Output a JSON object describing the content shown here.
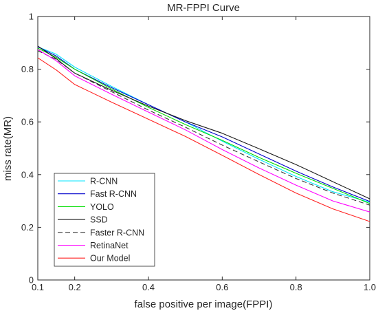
{
  "chart_data": {
    "type": "line",
    "title": "MR-FPPI Curve",
    "xlabel": "false positive per image(FPPI)",
    "ylabel": "miss rate(MR)",
    "xlim": [
      0.1,
      1.0
    ],
    "ylim": [
      0,
      1
    ],
    "xticks": [
      0.1,
      0.2,
      0.4,
      0.6,
      0.8,
      1.0
    ],
    "xtick_labels": [
      "0.1",
      "0.2",
      "0.4",
      "0.6",
      "0.8",
      "1.0"
    ],
    "yticks": [
      0,
      0.2,
      0.4,
      0.6,
      0.8,
      1
    ],
    "ytick_labels": [
      "0",
      "0.2",
      "0.4",
      "0.6",
      "0.8",
      "1"
    ],
    "grid": false,
    "legend_position": "bottom-left",
    "x": [
      0.1,
      0.15,
      0.2,
      0.3,
      0.4,
      0.5,
      0.6,
      0.7,
      0.8,
      0.9,
      1.0
    ],
    "series": [
      {
        "name": "R-CNN",
        "color": "#00e5ff",
        "dash": "solid",
        "values": [
          0.885,
          0.857,
          0.808,
          0.735,
          0.665,
          0.6,
          0.527,
          0.458,
          0.393,
          0.335,
          0.295
        ]
      },
      {
        "name": "Fast R-CNN",
        "color": "#0000cc",
        "dash": "solid",
        "values": [
          0.885,
          0.85,
          0.8,
          0.73,
          0.665,
          0.6,
          0.543,
          0.478,
          0.413,
          0.353,
          0.298
        ]
      },
      {
        "name": "YOLO",
        "color": "#00dd00",
        "dash": "solid",
        "values": [
          0.88,
          0.845,
          0.8,
          0.725,
          0.655,
          0.59,
          0.53,
          0.465,
          0.405,
          0.348,
          0.29
        ]
      },
      {
        "name": "SSD",
        "color": "#1a1a1a",
        "dash": "solid",
        "values": [
          0.888,
          0.84,
          0.785,
          0.72,
          0.66,
          0.605,
          0.557,
          0.498,
          0.438,
          0.373,
          0.308
        ]
      },
      {
        "name": "Faster R-CNN",
        "color": "#333333",
        "dash": "dashed",
        "values": [
          0.87,
          0.837,
          0.785,
          0.715,
          0.645,
          0.58,
          0.512,
          0.448,
          0.385,
          0.33,
          0.284
        ]
      },
      {
        "name": "RetinaNet",
        "color": "#ff00ff",
        "dash": "solid",
        "values": [
          0.875,
          0.832,
          0.775,
          0.705,
          0.637,
          0.57,
          0.495,
          0.425,
          0.36,
          0.3,
          0.258
        ]
      },
      {
        "name": "Our Model",
        "color": "#ff2222",
        "dash": "solid",
        "values": [
          0.843,
          0.797,
          0.742,
          0.675,
          0.61,
          0.545,
          0.473,
          0.4,
          0.33,
          0.27,
          0.222
        ]
      }
    ]
  }
}
